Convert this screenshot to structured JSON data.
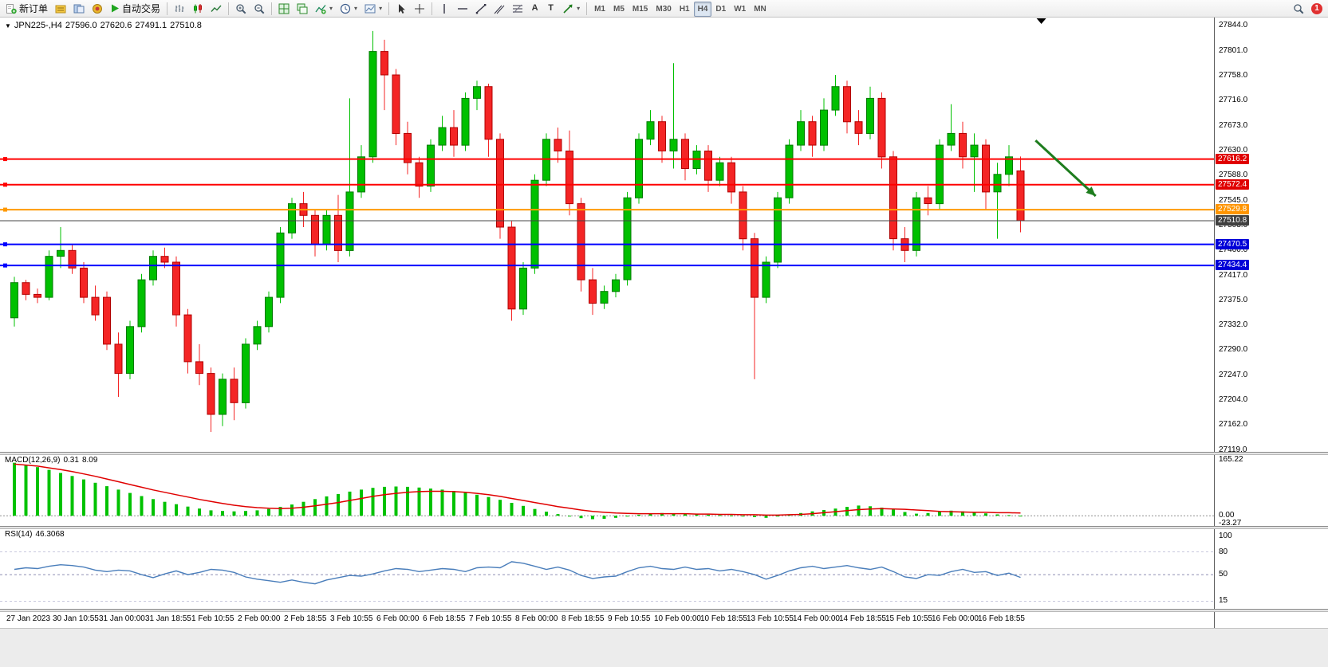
{
  "toolbar": {
    "new_order": "新订单",
    "auto_trading": "自动交易",
    "timeframes": [
      "M1",
      "M5",
      "M15",
      "M30",
      "H1",
      "H4",
      "D1",
      "W1",
      "MN"
    ],
    "active_timeframe": "H4",
    "notification_count": "1",
    "glyphs": {
      "text_tool": "A",
      "label_tool": "T",
      "dropdown": "▾",
      "collapse": "▼"
    }
  },
  "chart": {
    "header": {
      "symbol": "JPN225-,H4",
      "open": "27596.0",
      "high": "27620.6",
      "low": "27491.1",
      "close": "27510.8"
    },
    "price_axis": [
      "27844.0",
      "27801.0",
      "27758.0",
      "27716.0",
      "27673.0",
      "27630.0",
      "27588.0",
      "27545.0",
      "27503.0",
      "27460.0",
      "27417.0",
      "27375.0",
      "27332.0",
      "27290.0",
      "27247.0",
      "27204.0",
      "27162.0",
      "27119.0"
    ]
  },
  "macd": {
    "label": "MACD(12,26,9)",
    "value_main": "0.31",
    "value_signal": "8.09",
    "scale": [
      "165.22",
      "0.00",
      "-23.27"
    ]
  },
  "rsi": {
    "label": "RSI(14)",
    "value": "46.3068",
    "scale": [
      "100",
      "80",
      "50",
      "15"
    ]
  },
  "chart_data": {
    "type": "candlestick",
    "symbol": "JPN225-",
    "timeframe": "H4",
    "price_range": [
      27116,
      27858
    ],
    "ohlc": [
      [
        27345,
        27415,
        27330,
        27405
      ],
      [
        27405,
        27410,
        27375,
        27385
      ],
      [
        27385,
        27395,
        27370,
        27380
      ],
      [
        27380,
        27460,
        27375,
        27450
      ],
      [
        27450,
        27500,
        27430,
        27460
      ],
      [
        27460,
        27470,
        27420,
        27430
      ],
      [
        27430,
        27440,
        27370,
        27380
      ],
      [
        27380,
        27400,
        27340,
        27350
      ],
      [
        27380,
        27390,
        27290,
        27300
      ],
      [
        27300,
        27320,
        27210,
        27250
      ],
      [
        27250,
        27340,
        27240,
        27330
      ],
      [
        27330,
        27420,
        27320,
        27410
      ],
      [
        27410,
        27460,
        27400,
        27450
      ],
      [
        27450,
        27465,
        27430,
        27440
      ],
      [
        27440,
        27450,
        27330,
        27350
      ],
      [
        27350,
        27360,
        27250,
        27270
      ],
      [
        27270,
        27300,
        27230,
        27250
      ],
      [
        27250,
        27260,
        27150,
        27180
      ],
      [
        27180,
        27250,
        27160,
        27240
      ],
      [
        27240,
        27260,
        27170,
        27200
      ],
      [
        27200,
        27310,
        27190,
        27300
      ],
      [
        27300,
        27340,
        27290,
        27330
      ],
      [
        27330,
        27390,
        27320,
        27380
      ],
      [
        27380,
        27500,
        27370,
        27490
      ],
      [
        27490,
        27550,
        27480,
        27540
      ],
      [
        27540,
        27560,
        27500,
        27520
      ],
      [
        27520,
        27530,
        27450,
        27470
      ],
      [
        27470,
        27530,
        27460,
        27520
      ],
      [
        27520,
        27555,
        27440,
        27460
      ],
      [
        27460,
        27720,
        27450,
        27560
      ],
      [
        27560,
        27640,
        27550,
        27620
      ],
      [
        27620,
        27835,
        27610,
        27800
      ],
      [
        27800,
        27820,
        27700,
        27760
      ],
      [
        27760,
        27770,
        27640,
        27660
      ],
      [
        27660,
        27680,
        27590,
        27610
      ],
      [
        27610,
        27620,
        27550,
        27570
      ],
      [
        27570,
        27650,
        27560,
        27640
      ],
      [
        27640,
        27690,
        27630,
        27670
      ],
      [
        27670,
        27700,
        27620,
        27640
      ],
      [
        27640,
        27730,
        27630,
        27720
      ],
      [
        27720,
        27750,
        27700,
        27740
      ],
      [
        27740,
        27745,
        27620,
        27650
      ],
      [
        27650,
        27660,
        27480,
        27500
      ],
      [
        27500,
        27510,
        27340,
        27360
      ],
      [
        27360,
        27440,
        27350,
        27430
      ],
      [
        27430,
        27590,
        27420,
        27580
      ],
      [
        27580,
        27660,
        27570,
        27650
      ],
      [
        27650,
        27670,
        27610,
        27630
      ],
      [
        27630,
        27665,
        27520,
        27540
      ],
      [
        27540,
        27550,
        27390,
        27410
      ],
      [
        27410,
        27430,
        27350,
        27370
      ],
      [
        27370,
        27400,
        27360,
        27390
      ],
      [
        27390,
        27420,
        27380,
        27410
      ],
      [
        27410,
        27560,
        27400,
        27550
      ],
      [
        27550,
        27660,
        27540,
        27650
      ],
      [
        27650,
        27700,
        27640,
        27680
      ],
      [
        27680,
        27690,
        27610,
        27630
      ],
      [
        27630,
        27780,
        27600,
        27650
      ],
      [
        27650,
        27660,
        27580,
        27600
      ],
      [
        27600,
        27640,
        27590,
        27630
      ],
      [
        27630,
        27640,
        27560,
        27580
      ],
      [
        27580,
        27620,
        27570,
        27610
      ],
      [
        27610,
        27620,
        27540,
        27560
      ],
      [
        27560,
        27570,
        27460,
        27480
      ],
      [
        27480,
        27490,
        27240,
        27380
      ],
      [
        27380,
        27450,
        27370,
        27440
      ],
      [
        27440,
        27560,
        27430,
        27550
      ],
      [
        27550,
        27650,
        27540,
        27640
      ],
      [
        27640,
        27700,
        27630,
        27680
      ],
      [
        27680,
        27690,
        27620,
        27640
      ],
      [
        27640,
        27720,
        27630,
        27700
      ],
      [
        27700,
        27760,
        27690,
        27740
      ],
      [
        27740,
        27750,
        27660,
        27680
      ],
      [
        27680,
        27700,
        27640,
        27660
      ],
      [
        27660,
        27740,
        27650,
        27720
      ],
      [
        27720,
        27730,
        27600,
        27620
      ],
      [
        27620,
        27630,
        27460,
        27480
      ],
      [
        27480,
        27500,
        27440,
        27460
      ],
      [
        27460,
        27560,
        27450,
        27550
      ],
      [
        27550,
        27570,
        27520,
        27540
      ],
      [
        27540,
        27650,
        27530,
        27640
      ],
      [
        27640,
        27710,
        27630,
        27660
      ],
      [
        27660,
        27680,
        27600,
        27620
      ],
      [
        27620,
        27660,
        27560,
        27640
      ],
      [
        27640,
        27650,
        27530,
        27560
      ],
      [
        27560,
        27610,
        27480,
        27590
      ],
      [
        27590,
        27640,
        27570,
        27620
      ],
      [
        27596.0,
        27620.6,
        27491.1,
        27510.8
      ]
    ],
    "levels": [
      {
        "price": 27616.2,
        "label": "27616.2",
        "color": "#ff0000",
        "tag_color": "#e00000",
        "width": 2
      },
      {
        "price": 27572.4,
        "label": "27572.4",
        "color": "#ff0000",
        "tag_color": "#e00000",
        "width": 2
      },
      {
        "price": 27529.8,
        "label": "27529.8",
        "color": "#ff9900",
        "tag_color": "#ff9500",
        "width": 2
      },
      {
        "price": 27510.8,
        "label": "27510.8",
        "color": "#444444",
        "tag_color": "#404040",
        "width": 1,
        "current": true
      },
      {
        "price": 27470.5,
        "label": "27470.5",
        "color": "#0000ff",
        "tag_color": "#0000d8",
        "width": 2
      },
      {
        "price": 27434.4,
        "label": "27434.4",
        "color": "#0000ff",
        "tag_color": "#0000d8",
        "width": 2
      }
    ],
    "macd": {
      "range": [
        -30,
        181
      ],
      "histogram": [
        156,
        150,
        143,
        135,
        126,
        117,
        107,
        97,
        87,
        77,
        67,
        58,
        49,
        41,
        34,
        27,
        21,
        16,
        14,
        13,
        14,
        16,
        20,
        26,
        33,
        41,
        49,
        57,
        64,
        71,
        77,
        82,
        85,
        86,
        85,
        83,
        80,
        77,
        73,
        68,
        62,
        55,
        47,
        38,
        29,
        20,
        12,
        5,
        -2,
        -7,
        -10,
        -9,
        -6,
        -2,
        3,
        6,
        8,
        7,
        5,
        4,
        3,
        2,
        1,
        -1,
        -4,
        -6,
        -2,
        3,
        8,
        13,
        17,
        21,
        26,
        30,
        28,
        24,
        18,
        11,
        6,
        8,
        12,
        15,
        13,
        10,
        7,
        4,
        2,
        0.31
      ],
      "signal": [
        152,
        149,
        146,
        141,
        136,
        130,
        123,
        116,
        108,
        100,
        92,
        84,
        76,
        69,
        62,
        55,
        48,
        42,
        36,
        31,
        27,
        24,
        22,
        21,
        22,
        25,
        29,
        34,
        39,
        45,
        51,
        57,
        62,
        66,
        69,
        71,
        72,
        72,
        71,
        69,
        66,
        62,
        57,
        51,
        45,
        39,
        33,
        27,
        22,
        17,
        13,
        10,
        8,
        7,
        6,
        6,
        6,
        6,
        6,
        5,
        5,
        4,
        4,
        3,
        3,
        2,
        2,
        3,
        4,
        6,
        9,
        12,
        15,
        18,
        20,
        21,
        20,
        19,
        17,
        15,
        13,
        12,
        11,
        10,
        10,
        9,
        9,
        8.09
      ]
    },
    "rsi": {
      "range": [
        5,
        111
      ],
      "level_lines": [
        80,
        50,
        15
      ],
      "values": [
        57,
        59,
        58,
        61,
        63,
        62,
        60,
        56,
        54,
        56,
        55,
        50,
        46,
        51,
        55,
        50,
        53,
        57,
        56,
        53,
        47,
        44,
        42,
        40,
        43,
        40,
        38,
        43,
        46,
        49,
        48,
        51,
        55,
        58,
        57,
        54,
        56,
        58,
        57,
        54,
        59,
        60,
        59,
        67,
        65,
        61,
        57,
        60,
        56,
        49,
        45,
        47,
        48,
        54,
        59,
        61,
        58,
        57,
        60,
        57,
        58,
        55,
        57,
        54,
        50,
        44,
        49,
        55,
        59,
        61,
        58,
        60,
        62,
        59,
        57,
        60,
        54,
        47,
        45,
        50,
        49,
        54,
        57,
        53,
        54,
        49,
        52,
        46.3
      ]
    },
    "time_labels": [
      "27 Jan 2023",
      "30 Jan 10:55",
      "31 Jan 00:00",
      "31 Jan 18:55",
      "1 Feb 10:55",
      "2 Feb 00:00",
      "2 Feb 18:55",
      "3 Feb 10:55",
      "6 Feb 00:00",
      "6 Feb 18:55",
      "7 Feb 10:55",
      "8 Feb 00:00",
      "8 Feb 18:55",
      "9 Feb 10:55",
      "10 Feb 00:00",
      "10 Feb 18:55",
      "13 Feb 10:55",
      "14 Feb 00:00",
      "14 Feb 18:55",
      "15 Feb 10:55",
      "16 Feb 00:00",
      "16 Feb 18:55"
    ],
    "annotations": {
      "arrow": {
        "from": {
          "index": 88.3,
          "price": 27648
        },
        "to": {
          "index": 93.5,
          "price": 27553
        },
        "color": "#1e7d1e"
      },
      "anchor": {
        "index": 88.8
      }
    }
  }
}
